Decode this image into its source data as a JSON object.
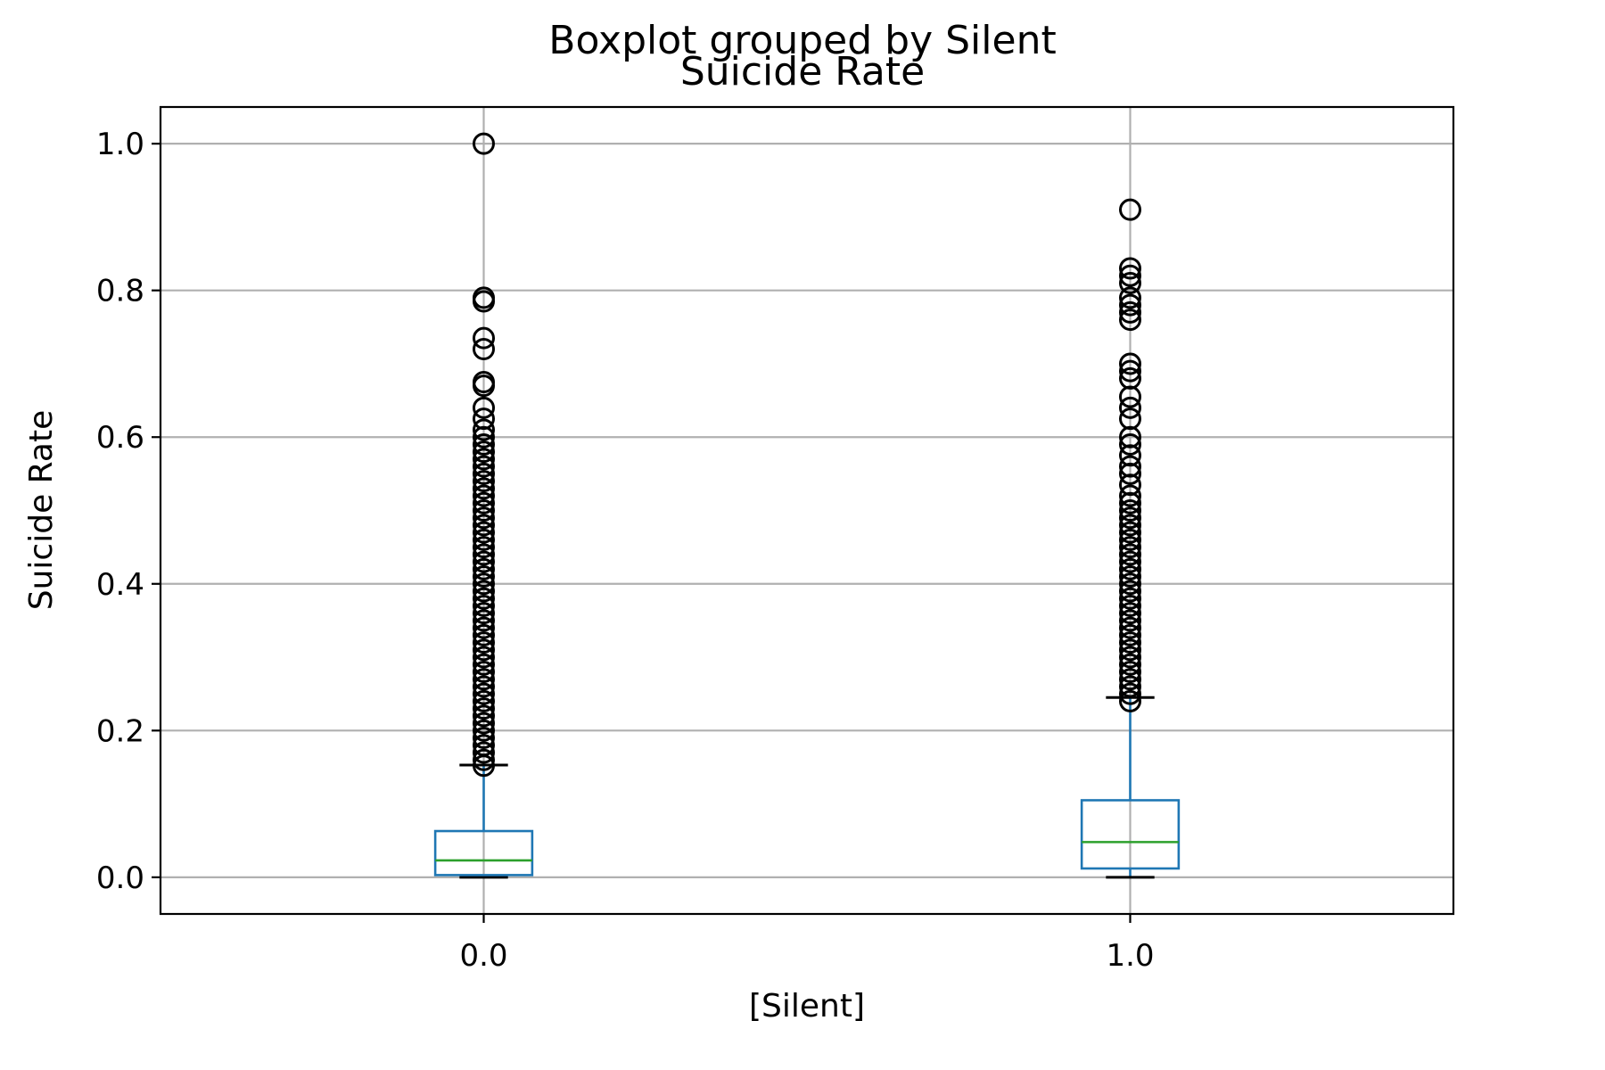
{
  "chart_data": {
    "type": "boxplot",
    "suptitle": "Boxplot grouped by Silent",
    "title": "Suicide Rate",
    "xlabel": "[Silent]",
    "ylabel": "Suicide Rate",
    "ylim": [
      -0.05,
      1.05
    ],
    "yticks": [
      0.0,
      0.2,
      0.4,
      0.6,
      0.8,
      1.0
    ],
    "ytick_labels": [
      "0.0",
      "0.2",
      "0.4",
      "0.6",
      "0.8",
      "1.0"
    ],
    "categories": [
      "0.0",
      "1.0"
    ],
    "grid": true,
    "colors": {
      "box": "#1f77b4",
      "median": "#2ca02c",
      "flier": "#000000",
      "cap": "#000000"
    },
    "boxes": [
      {
        "category": "0.0",
        "whisker_low": 0.0,
        "q1": 0.003,
        "median": 0.023,
        "q3": 0.063,
        "whisker_high": 0.153,
        "fliers": [
          0.152,
          0.16,
          0.17,
          0.18,
          0.19,
          0.2,
          0.21,
          0.22,
          0.23,
          0.24,
          0.25,
          0.26,
          0.27,
          0.28,
          0.29,
          0.3,
          0.31,
          0.32,
          0.33,
          0.34,
          0.35,
          0.36,
          0.37,
          0.38,
          0.39,
          0.4,
          0.41,
          0.42,
          0.43,
          0.44,
          0.45,
          0.46,
          0.47,
          0.48,
          0.49,
          0.5,
          0.51,
          0.52,
          0.53,
          0.54,
          0.55,
          0.56,
          0.57,
          0.58,
          0.59,
          0.6,
          0.61,
          0.625,
          0.64,
          0.67,
          0.675,
          0.72,
          0.735,
          0.785,
          0.79,
          1.0
        ]
      },
      {
        "category": "1.0",
        "whisker_low": 0.0,
        "q1": 0.012,
        "median": 0.048,
        "q3": 0.105,
        "whisker_high": 0.245,
        "fliers": [
          0.24,
          0.25,
          0.26,
          0.27,
          0.28,
          0.29,
          0.3,
          0.31,
          0.32,
          0.33,
          0.34,
          0.35,
          0.36,
          0.37,
          0.38,
          0.39,
          0.4,
          0.41,
          0.42,
          0.43,
          0.44,
          0.45,
          0.46,
          0.47,
          0.48,
          0.49,
          0.5,
          0.51,
          0.52,
          0.535,
          0.55,
          0.56,
          0.575,
          0.59,
          0.6,
          0.625,
          0.64,
          0.655,
          0.68,
          0.69,
          0.7,
          0.76,
          0.77,
          0.78,
          0.79,
          0.81,
          0.82,
          0.83,
          0.91
        ]
      }
    ]
  }
}
